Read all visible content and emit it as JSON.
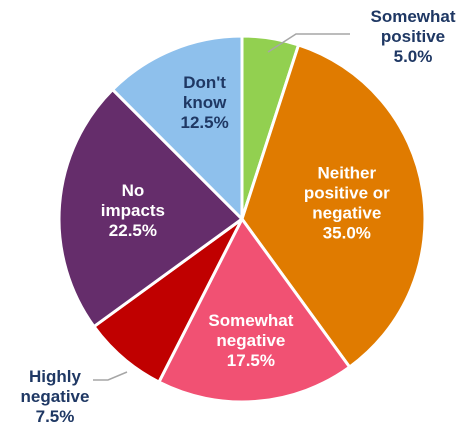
{
  "chart_data": {
    "type": "pie",
    "title": "",
    "start_angle_deg": 0,
    "direction": "clockwise",
    "slices": [
      {
        "label": [
          "Somewhat",
          "positive"
        ],
        "value_text": "5.0%",
        "value": 5.0,
        "color": "#92d050",
        "label_color": "#1f3864",
        "label_placement": "outside"
      },
      {
        "label": [
          "Neither",
          "positive or",
          "negative"
        ],
        "value_text": "35.0%",
        "value": 35.0,
        "color": "#e07b00",
        "label_color": "#ffffff",
        "label_placement": "inside"
      },
      {
        "label": [
          "Somewhat",
          "negative"
        ],
        "value_text": "17.5%",
        "value": 17.5,
        "color": "#f15173",
        "label_color": "#ffffff",
        "label_placement": "inside"
      },
      {
        "label": [
          "Highly",
          "negative"
        ],
        "value_text": "7.5%",
        "value": 7.5,
        "color": "#c00000",
        "label_color": "#1f3864",
        "label_placement": "outside"
      },
      {
        "label": [
          "No",
          "impacts"
        ],
        "value_text": "22.5%",
        "value": 22.5,
        "color": "#652d6b",
        "label_color": "#ffffff",
        "label_placement": "inside"
      },
      {
        "label": [
          "Don't",
          "know"
        ],
        "value_text": "12.5%",
        "value": 12.5,
        "color": "#8ec0ec",
        "label_color": "#1f3864",
        "label_placement": "inside"
      }
    ]
  }
}
